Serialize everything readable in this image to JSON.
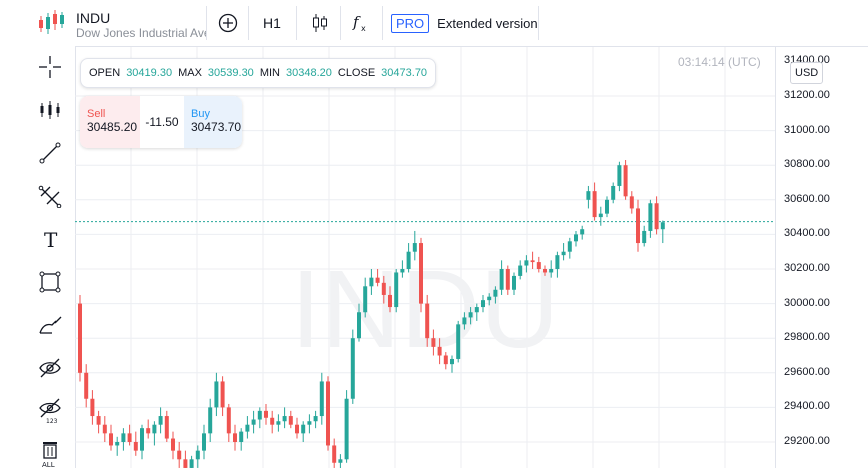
{
  "header": {
    "symbol": "INDU",
    "subtitle": "Dow Jones Industrial Ave",
    "interval": "H1",
    "pro_badge": "PRO",
    "extended_label": "Extended version",
    "icons": [
      "indicators-add-icon",
      "candle-style-icon",
      "function-icon"
    ]
  },
  "watermark": "INDU",
  "ohlc": {
    "open_label": "OPEN",
    "open": "30419.30",
    "max_label": "MAX",
    "max": "30539.30",
    "min_label": "MIN",
    "min": "30348.20",
    "close_label": "CLOSE",
    "close": "30473.70"
  },
  "trade": {
    "sell_label": "Sell",
    "sell_price": "30485.20",
    "spread": "-11.50",
    "buy_label": "Buy",
    "buy_price": "30473.70"
  },
  "clock": "03:14:14 (UTC)",
  "currency": "USD",
  "price_axis": [
    "31200.00",
    "31000.00",
    "30800.00",
    "30600.00",
    "30400.00",
    "30200.00",
    "30000.00",
    "29800.00",
    "29600.00",
    "29400.00",
    "29200.00"
  ],
  "price_top_partial": "31400.00",
  "current_price": 30473.7,
  "colors": {
    "up": "#26a69a",
    "down": "#ef5350",
    "accent": "#2962ff"
  },
  "candles": [
    [
      30000,
      30050,
      29550,
      29600
    ],
    [
      29600,
      29650,
      29400,
      29450
    ],
    [
      29450,
      29500,
      29300,
      29350
    ],
    [
      29350,
      29380,
      29250,
      29300
    ],
    [
      29300,
      29350,
      29200,
      29250
    ],
    [
      29250,
      29300,
      29150,
      29180
    ],
    [
      29180,
      29230,
      29120,
      29200
    ],
    [
      29200,
      29280,
      29150,
      29250
    ],
    [
      29250,
      29300,
      29180,
      29200
    ],
    [
      29200,
      29260,
      29120,
      29150
    ],
    [
      29150,
      29300,
      29100,
      29280
    ],
    [
      29280,
      29330,
      29220,
      29250
    ],
    [
      29250,
      29320,
      29180,
      29300
    ],
    [
      29300,
      29400,
      29250,
      29350
    ],
    [
      29350,
      29380,
      29200,
      29220
    ],
    [
      29220,
      29260,
      29100,
      29150
    ],
    [
      29150,
      29200,
      29050,
      29100
    ],
    [
      29100,
      29150,
      29000,
      29050
    ],
    [
      29050,
      29120,
      28980,
      29100
    ],
    [
      29100,
      29180,
      29050,
      29150
    ],
    [
      29150,
      29300,
      29100,
      29250
    ],
    [
      29250,
      29450,
      29200,
      29400
    ],
    [
      29400,
      29600,
      29350,
      29550
    ],
    [
      29550,
      29580,
      29350,
      29400
    ],
    [
      29400,
      29420,
      29200,
      29250
    ],
    [
      29250,
      29300,
      29150,
      29200
    ],
    [
      29200,
      29280,
      29150,
      29260
    ],
    [
      29260,
      29350,
      29220,
      29300
    ],
    [
      29300,
      29380,
      29250,
      29330
    ],
    [
      29330,
      29400,
      29280,
      29380
    ],
    [
      29380,
      29420,
      29300,
      29340
    ],
    [
      29340,
      29380,
      29250,
      29300
    ],
    [
      29300,
      29360,
      29260,
      29320
    ],
    [
      29320,
      29400,
      29280,
      29350
    ],
    [
      29350,
      29380,
      29280,
      29300
    ],
    [
      29300,
      29340,
      29220,
      29250
    ],
    [
      29250,
      29320,
      29200,
      29300
    ],
    [
      29300,
      29360,
      29250,
      29320
    ],
    [
      29320,
      29380,
      29280,
      29350
    ],
    [
      29350,
      29600,
      29300,
      29550
    ],
    [
      29550,
      29580,
      29150,
      29180
    ],
    [
      29180,
      29220,
      29050,
      29080
    ],
    [
      29080,
      29130,
      29000,
      29100
    ],
    [
      29100,
      29500,
      29080,
      29450
    ],
    [
      29450,
      29850,
      29420,
      29800
    ],
    [
      29800,
      30000,
      29780,
      29950
    ],
    [
      29950,
      30150,
      29920,
      30100
    ],
    [
      30100,
      30200,
      30050,
      30150
    ],
    [
      30150,
      30200,
      30100,
      30120
    ],
    [
      30120,
      30160,
      30000,
      30050
    ],
    [
      30050,
      30100,
      29950,
      29980
    ],
    [
      29980,
      30200,
      29950,
      30180
    ],
    [
      30180,
      30250,
      30150,
      30200
    ],
    [
      30200,
      30350,
      30180,
      30300
    ],
    [
      30300,
      30420,
      30250,
      30350
    ],
    [
      30350,
      30380,
      29950,
      30000
    ],
    [
      30000,
      30050,
      29750,
      29800
    ],
    [
      29800,
      29850,
      29700,
      29750
    ],
    [
      29750,
      29800,
      29650,
      29700
    ],
    [
      29700,
      29720,
      29620,
      29650
    ],
    [
      29650,
      29700,
      29600,
      29680
    ],
    [
      29680,
      29900,
      29660,
      29880
    ],
    [
      29880,
      29950,
      29850,
      29920
    ],
    [
      29920,
      29980,
      29880,
      29950
    ],
    [
      29950,
      30000,
      29900,
      29980
    ],
    [
      29980,
      30050,
      29950,
      30020
    ],
    [
      30020,
      30060,
      29990,
      30040
    ],
    [
      30040,
      30100,
      30000,
      30080
    ],
    [
      30080,
      30250,
      30050,
      30200
    ],
    [
      30200,
      30220,
      30050,
      30080
    ],
    [
      30080,
      30180,
      30050,
      30160
    ],
    [
      30160,
      30250,
      30140,
      30220
    ],
    [
      30220,
      30280,
      30180,
      30250
    ],
    [
      30250,
      30300,
      30200,
      30240
    ],
    [
      30240,
      30270,
      30180,
      30200
    ],
    [
      30200,
      30220,
      30160,
      30180
    ],
    [
      30180,
      30250,
      30150,
      30200
    ],
    [
      30200,
      30300,
      30150,
      30280
    ],
    [
      30280,
      30350,
      30250,
      30300
    ],
    [
      30300,
      30380,
      30260,
      30360
    ],
    [
      30360,
      30420,
      30330,
      30400
    ],
    [
      30400,
      30450,
      30370,
      30430
    ],
    [
      30600,
      30680,
      30550,
      30650
    ],
    [
      30650,
      30700,
      30480,
      30500
    ],
    [
      30500,
      30560,
      30450,
      30520
    ],
    [
      30520,
      30620,
      30500,
      30600
    ],
    [
      30600,
      30700,
      30580,
      30680
    ],
    [
      30680,
      30820,
      30650,
      30800
    ],
    [
      30800,
      30830,
      30600,
      30620
    ],
    [
      30620,
      30650,
      30520,
      30550
    ],
    [
      30550,
      30600,
      30300,
      30350
    ],
    [
      30350,
      30450,
      30330,
      30420
    ],
    [
      30420,
      30600,
      30380,
      30580
    ],
    [
      30580,
      30620,
      30400,
      30430
    ],
    [
      30430,
      30480,
      30350,
      30470
    ]
  ]
}
